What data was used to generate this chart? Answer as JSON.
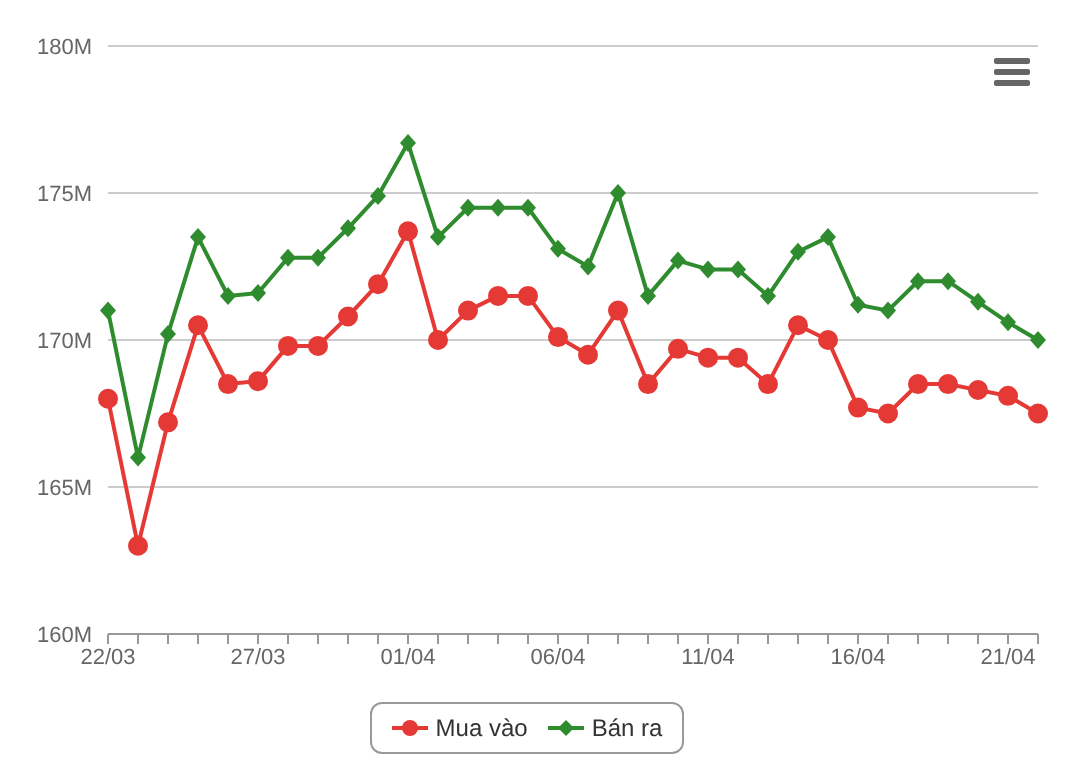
{
  "chart_data": {
    "type": "line",
    "categories": [
      "22/03",
      null,
      null,
      null,
      null,
      "27/03",
      null,
      null,
      null,
      null,
      "01/04",
      null,
      null,
      null,
      null,
      "06/04",
      null,
      null,
      null,
      null,
      "11/04",
      null,
      null,
      null,
      null,
      "16/04",
      null,
      null,
      null,
      null,
      "21/04",
      null
    ],
    "series": [
      {
        "name": "Mua vào",
        "color": "#e53935",
        "marker": "circle",
        "values": [
          168.0,
          163.0,
          167.2,
          170.5,
          168.5,
          168.6,
          169.8,
          169.8,
          170.8,
          171.9,
          173.7,
          170.0,
          171.0,
          171.5,
          171.5,
          170.1,
          169.5,
          171.0,
          168.5,
          169.7,
          169.4,
          169.4,
          168.5,
          170.5,
          170.0,
          167.7,
          167.5,
          168.5,
          168.5,
          168.3,
          168.1,
          167.5
        ]
      },
      {
        "name": "Bán ra",
        "color": "#2e8b2e",
        "marker": "diamond",
        "values": [
          171.0,
          166.0,
          170.2,
          173.5,
          171.5,
          171.6,
          172.8,
          172.8,
          173.8,
          174.9,
          176.7,
          173.5,
          174.5,
          174.5,
          174.5,
          173.1,
          172.5,
          175.0,
          171.5,
          172.7,
          172.4,
          172.4,
          171.5,
          173.0,
          173.5,
          171.2,
          171.0,
          172.0,
          172.0,
          171.3,
          170.6,
          170.0
        ]
      }
    ],
    "ylim": [
      160,
      180
    ],
    "yticks": [
      {
        "value": 160,
        "label": "160M"
      },
      {
        "value": 165,
        "label": "165M"
      },
      {
        "value": 170,
        "label": "170M"
      },
      {
        "value": 175,
        "label": "175M"
      },
      {
        "value": 180,
        "label": "180M"
      }
    ],
    "grid": "y",
    "legend": "bottom",
    "line_style": "solid"
  }
}
